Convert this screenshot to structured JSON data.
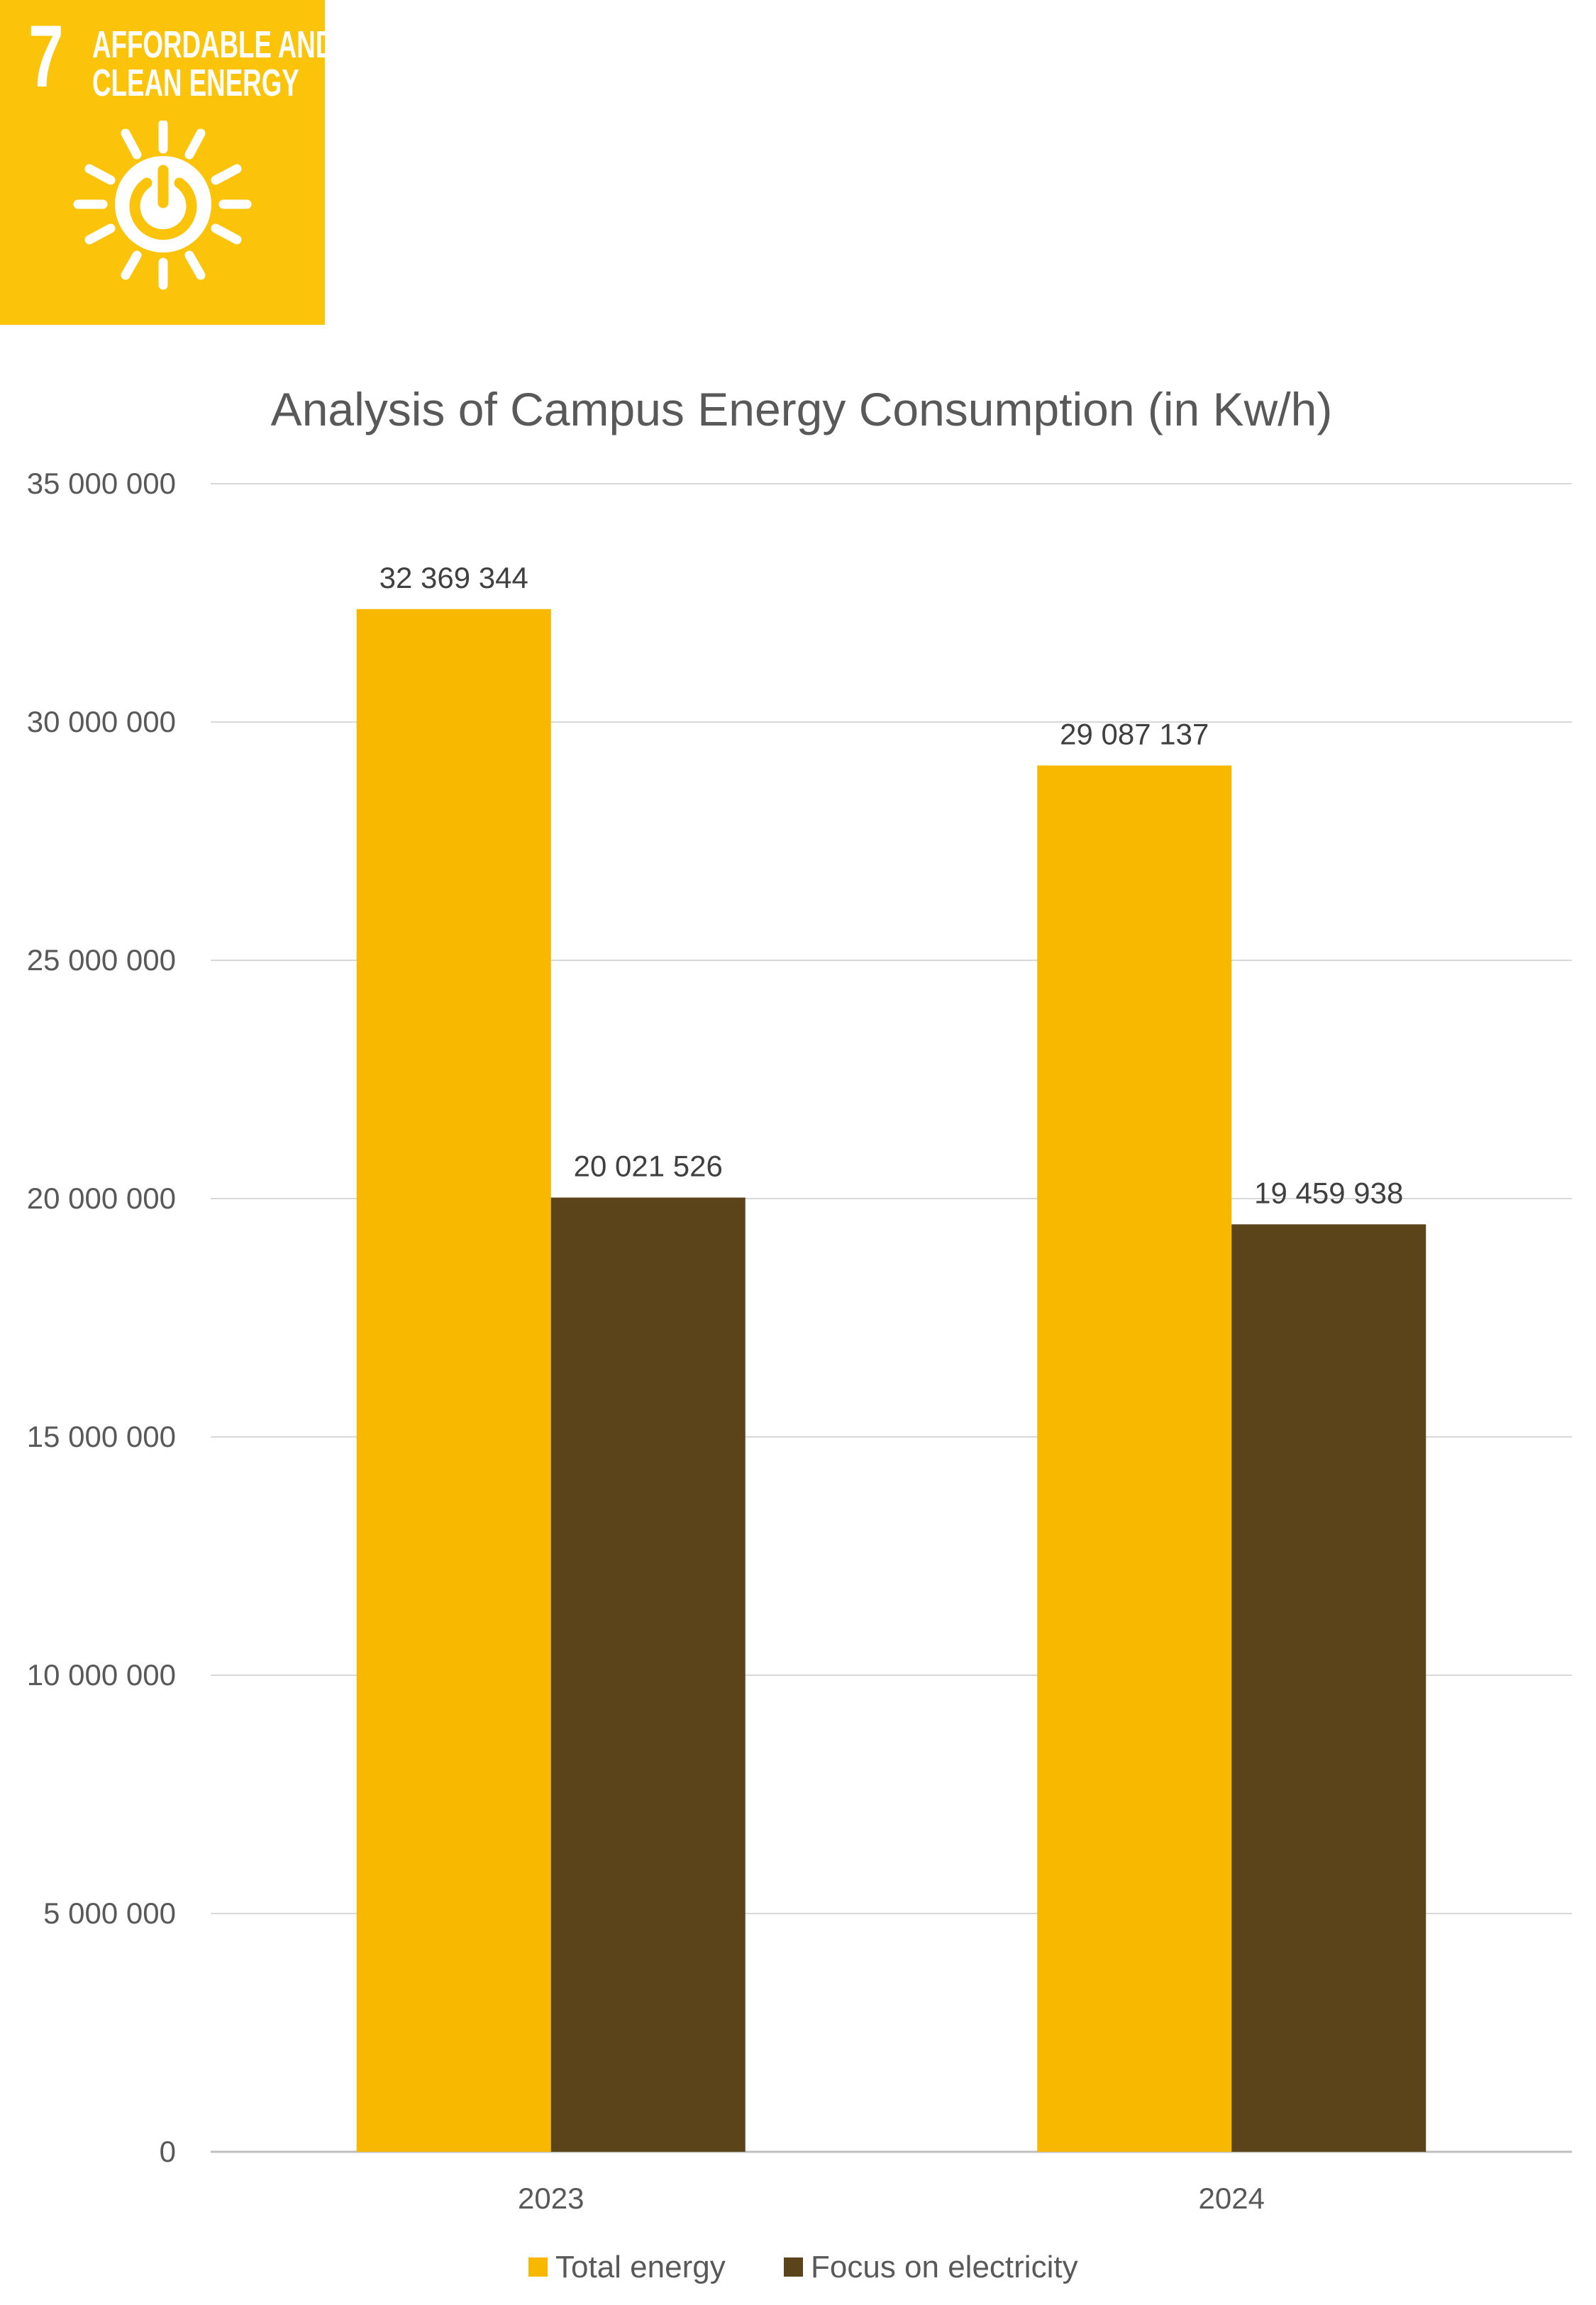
{
  "badge": {
    "number": "7",
    "title_line1": "AFFORDABLE AND",
    "title_line2": "CLEAN ENERGY",
    "icon": "sun-power-icon",
    "background_color": "#FCC30B"
  },
  "chart_data": {
    "type": "bar",
    "title": "Analysis of Campus Energy Consumption (in Kw/h)",
    "categories": [
      "2023",
      "2024"
    ],
    "series": [
      {
        "name": "Total energy",
        "color": "#F9B800",
        "values": [
          32369344,
          29087137
        ],
        "labels": [
          "32 369 344",
          "29 087 137"
        ]
      },
      {
        "name": "Focus on electricity",
        "color": "#5C441A",
        "values": [
          20021526,
          19459938
        ],
        "labels": [
          "20 021 526",
          "19 459 938"
        ]
      }
    ],
    "ylim": [
      0,
      35000000
    ],
    "yticks": [
      0,
      5000000,
      10000000,
      15000000,
      20000000,
      25000000,
      30000000,
      35000000
    ],
    "ytick_labels": [
      "0",
      "5 000 000",
      "10 000 000",
      "15 000 000",
      "20 000 000",
      "25 000 000",
      "30 000 000",
      "35 000 000"
    ],
    "xlabel": "",
    "ylabel": "",
    "grid": true,
    "legend_position": "bottom"
  }
}
